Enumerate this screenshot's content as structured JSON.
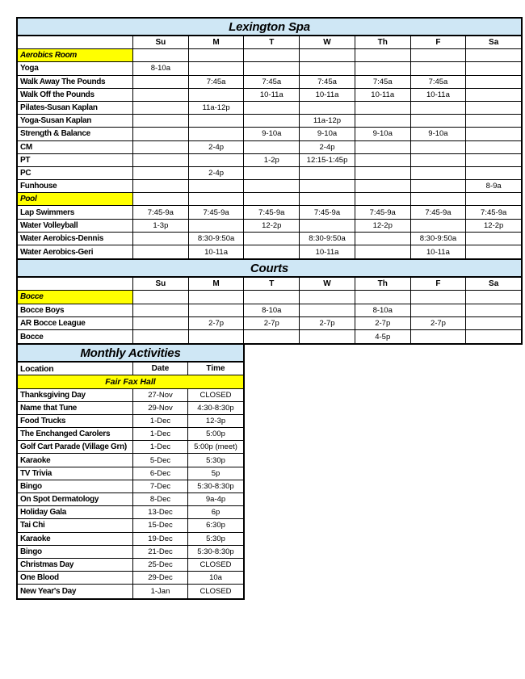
{
  "colors": {
    "header_blue": "#cfe7f5",
    "highlight_yellow": "#ffff00",
    "border_black": "#000000"
  },
  "spa": {
    "title": "Lexington Spa",
    "days": [
      "Su",
      "M",
      "T",
      "W",
      "Th",
      "F",
      "Sa"
    ],
    "rows": [
      {
        "label": "Aerobics Room",
        "section": true,
        "cells": [
          "",
          "",
          "",
          "",
          "",
          "",
          ""
        ]
      },
      {
        "label": "Yoga",
        "cells": [
          "8-10a",
          "",
          "",
          "",
          "",
          "",
          ""
        ]
      },
      {
        "label": "Walk Away The Pounds",
        "cells": [
          "",
          "7:45a",
          "7:45a",
          "7:45a",
          "7:45a",
          "7:45a",
          ""
        ]
      },
      {
        "label": "Walk Off the Pounds",
        "cells": [
          "",
          "",
          "10-11a",
          "10-11a",
          "10-11a",
          "10-11a",
          ""
        ]
      },
      {
        "label": "Pilates-Susan Kaplan",
        "cells": [
          "",
          "11a-12p",
          "",
          "",
          "",
          "",
          ""
        ]
      },
      {
        "label": "Yoga-Susan Kaplan",
        "cells": [
          "",
          "",
          "",
          "11a-12p",
          "",
          "",
          ""
        ]
      },
      {
        "label": "Strength & Balance",
        "cells": [
          "",
          "",
          "9-10a",
          "9-10a",
          "9-10a",
          "9-10a",
          ""
        ]
      },
      {
        "label": "CM",
        "cells": [
          "",
          "2-4p",
          "",
          "2-4p",
          "",
          "",
          ""
        ]
      },
      {
        "label": "PT",
        "cells": [
          "",
          "",
          "1-2p",
          "12:15-1:45p",
          "",
          "",
          ""
        ]
      },
      {
        "label": "PC",
        "cells": [
          "",
          "2-4p",
          "",
          "",
          "",
          "",
          ""
        ]
      },
      {
        "label": "Funhouse",
        "cells": [
          "",
          "",
          "",
          "",
          "",
          "",
          "8-9a"
        ]
      },
      {
        "label": "Pool",
        "section": true,
        "cells": [
          "",
          "",
          "",
          "",
          "",
          "",
          ""
        ]
      },
      {
        "label": "Lap Swimmers",
        "cells": [
          "7:45-9a",
          "7:45-9a",
          "7:45-9a",
          "7:45-9a",
          "7:45-9a",
          "7:45-9a",
          "7:45-9a"
        ]
      },
      {
        "label": "Water Volleyball",
        "cells": [
          "1-3p",
          "",
          "12-2p",
          "",
          "12-2p",
          "",
          "12-2p"
        ]
      },
      {
        "label": "Water Aerobics-Dennis",
        "cells": [
          "",
          "8:30-9:50a",
          "",
          "8:30-9:50a",
          "",
          "8:30-9:50a",
          ""
        ]
      },
      {
        "label": "Water Aerobics-Geri",
        "cells": [
          "",
          "10-11a",
          "",
          "10-11a",
          "",
          "10-11a",
          ""
        ]
      }
    ]
  },
  "courts": {
    "title": "Courts",
    "days": [
      "Su",
      "M",
      "T",
      "W",
      "Th",
      "F",
      "Sa"
    ],
    "rows": [
      {
        "label": "Bocce",
        "section": true,
        "cells": [
          "",
          "",
          "",
          "",
          "",
          "",
          ""
        ]
      },
      {
        "label": "Bocce Boys",
        "cells": [
          "",
          "",
          "8-10a",
          "",
          "8-10a",
          "",
          ""
        ]
      },
      {
        "label": "AR Bocce League",
        "cells": [
          "",
          "2-7p",
          "2-7p",
          "2-7p",
          "2-7p",
          "2-7p",
          ""
        ]
      },
      {
        "label": "Bocce",
        "cells": [
          "",
          "",
          "",
          "",
          "4-5p",
          "",
          ""
        ]
      }
    ]
  },
  "monthly": {
    "title": "Monthly Activities",
    "headers": {
      "location": "Location",
      "date": "Date",
      "time": "Time"
    },
    "section": "Fair Fax Hall",
    "rows": [
      {
        "location": "Thanksgiving Day",
        "date": "27-Nov",
        "time": "CLOSED"
      },
      {
        "location": "Name that Tune",
        "date": "29-Nov",
        "time": "4:30-8:30p"
      },
      {
        "location": "Food Trucks",
        "date": "1-Dec",
        "time": "12-3p"
      },
      {
        "location": "The Enchanged Carolers",
        "date": "1-Dec",
        "time": "5:00p"
      },
      {
        "location": "Golf Cart Parade (Village Grn)",
        "date": "1-Dec",
        "time": "5:00p (meet)"
      },
      {
        "location": "Karaoke",
        "date": "5-Dec",
        "time": "5:30p"
      },
      {
        "location": "TV Trivia",
        "date": "6-Dec",
        "time": "5p"
      },
      {
        "location": "Bingo",
        "date": "7-Dec",
        "time": "5:30-8:30p"
      },
      {
        "location": "On Spot Dermatology",
        "date": "8-Dec",
        "time": "9a-4p"
      },
      {
        "location": "Holiday Gala",
        "date": "13-Dec",
        "time": "6p"
      },
      {
        "location": "Tai Chi",
        "date": "15-Dec",
        "time": "6:30p"
      },
      {
        "location": "Karaoke",
        "date": "19-Dec",
        "time": "5:30p"
      },
      {
        "location": "Bingo",
        "date": "21-Dec",
        "time": "5:30-8:30p"
      },
      {
        "location": "Christmas Day",
        "date": "25-Dec",
        "time": "CLOSED"
      },
      {
        "location": "One Blood",
        "date": "29-Dec",
        "time": "10a"
      },
      {
        "location": "New Year's Day",
        "date": "1-Jan",
        "time": "CLOSED"
      }
    ]
  }
}
